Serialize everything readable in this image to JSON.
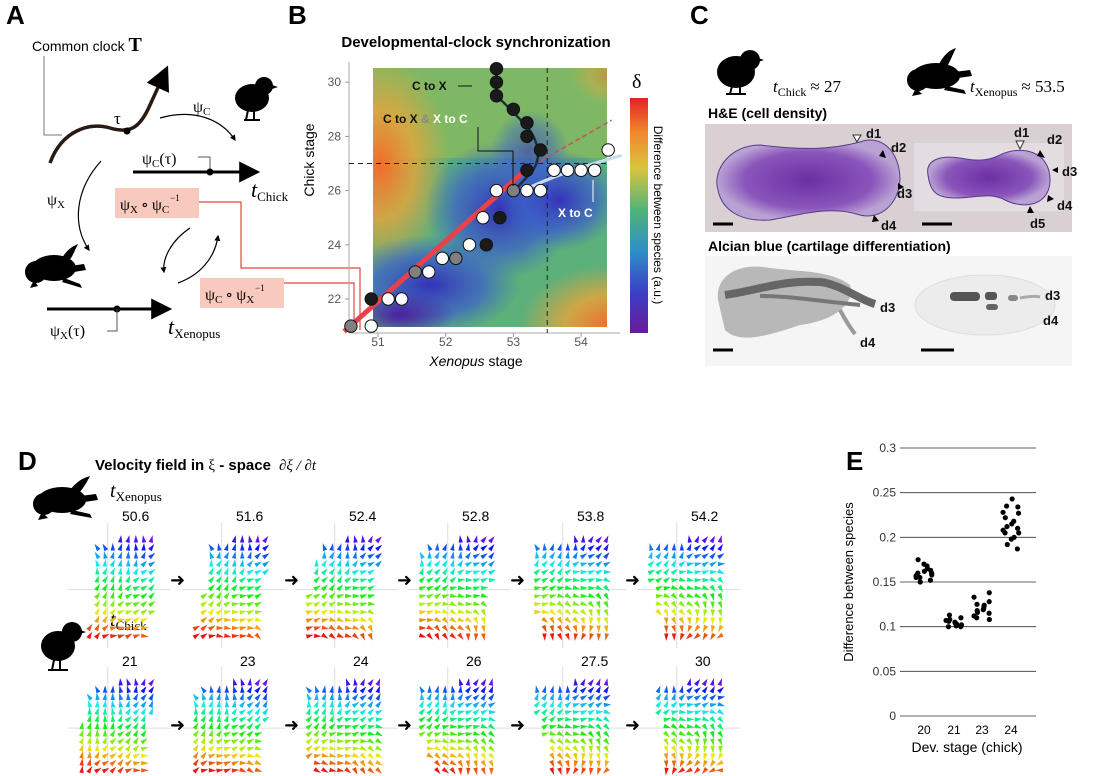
{
  "panel_labels": {
    "a": "A",
    "b": "B",
    "c": "C",
    "d": "D",
    "e": "E"
  },
  "panel_a": {
    "common_clock": "Common clock",
    "clock_symbol": "T",
    "tau": "τ",
    "psi": "ψ",
    "sub_c": "C",
    "sub_x": "X",
    "arg_tau": "(τ)",
    "t": "t",
    "chick": "Chick",
    "xenopus": "Xenopus",
    "compose": "∘",
    "inverse": "−1",
    "box_color": "#f8c9bd",
    "link_color": "#e0473a"
  },
  "panel_b": {
    "title": "Developmental-clock synchronization",
    "colorbar_symbol": "δ",
    "colorbar_label": "Difference between species (a.u.)",
    "ann_c_to_x": "C to X",
    "ann_both_1": "C to X",
    "ann_both_amp": "&",
    "ann_both_2": "X to C",
    "ann_x_to_c": "X to C"
  },
  "panel_c": {
    "chick_time_t": "t",
    "chick_time_sub": "Chick",
    "chick_time_val": "≈ 27",
    "xen_time_t": "t",
    "xen_time_sub": "Xenopus",
    "xen_time_val": "≈ 53.5",
    "he_title": "H&E (cell density)",
    "alcian_title": "Alcian blue (cartilage differentiation)",
    "he_chick_digits": [
      "d1",
      "d2",
      "d3",
      "d4"
    ],
    "he_xen_digits": [
      "d1",
      "d2",
      "d3",
      "d4",
      "d5"
    ],
    "ab_chick_digits": [
      "d3",
      "d4"
    ],
    "ab_xen_digits": [
      "d3",
      "d4"
    ]
  },
  "panel_d": {
    "title": "Velocity field in",
    "xi": "ξ",
    "space": " - space",
    "deriv": "∂ξ / ∂t",
    "t": "t",
    "xen_sub": "Xenopus",
    "chick_sub": "Chick",
    "xenopus_stages": [
      "50.6",
      "51.6",
      "52.4",
      "52.8",
      "53.8",
      "54.2"
    ],
    "chick_stages": [
      "21",
      "23",
      "24",
      "26",
      "27.5",
      "30"
    ],
    "arrow": "➜"
  },
  "chart_data": [
    {
      "panel": "B",
      "type": "heatmap",
      "title": "Developmental-clock synchronization",
      "xlabel_italic": "Xenopus",
      "xlabel": "stage",
      "ylabel": "Chick stage",
      "xlim": [
        50.5,
        54.6
      ],
      "ylim": [
        20.8,
        30.7
      ],
      "xticks": [
        "51",
        "52",
        "53",
        "54"
      ],
      "yticks": [
        "22",
        "24",
        "26",
        "28",
        "30"
      ],
      "colorscale": [
        "#6a1b9a",
        "#3b3fc4",
        "#2f8fc8",
        "#4fb37a",
        "#d9c43f",
        "#f08a2e",
        "#e32222"
      ],
      "reference_lines": {
        "xenopus": 53.5,
        "chick": 27
      },
      "series": [
        {
          "label": "C to X",
          "color": "#1a1a1a",
          "points": [
            [
              52.75,
              30.5
            ],
            [
              52.75,
              30
            ],
            [
              52.75,
              29.5
            ],
            [
              53,
              29
            ],
            [
              53.2,
              28.5
            ],
            [
              53.2,
              28
            ],
            [
              53.4,
              27.5
            ],
            [
              53.2,
              26.75
            ],
            [
              52.8,
              25
            ],
            [
              52.6,
              24
            ],
            [
              50.9,
              22
            ]
          ]
        },
        {
          "label": "C to X & X to C",
          "color": "#808080",
          "points": [
            [
              50.6,
              21
            ],
            [
              51.55,
              23
            ],
            [
              52.15,
              23.5
            ],
            [
              53,
              26
            ]
          ]
        },
        {
          "label": "X to C",
          "color": "#ffffff",
          "points": [
            [
              50.9,
              21
            ],
            [
              51.15,
              22
            ],
            [
              51.35,
              22
            ],
            [
              51.75,
              23
            ],
            [
              51.95,
              23.5
            ],
            [
              52.35,
              24
            ],
            [
              52.55,
              25
            ],
            [
              52.75,
              26
            ],
            [
              53.2,
              26
            ],
            [
              53.4,
              26
            ],
            [
              53.6,
              26.75
            ],
            [
              53.8,
              26.75
            ],
            [
              54,
              26.75
            ],
            [
              54.2,
              26.75
            ],
            [
              54.4,
              27.5
            ]
          ]
        }
      ]
    },
    {
      "panel": "E",
      "type": "scatter",
      "ylabel": "Difference between species",
      "xlabel": "Dev. stage (chick)",
      "categories": [
        "20",
        "21",
        "23",
        "24"
      ],
      "ylim": [
        0,
        0.3
      ],
      "yticks": [
        "0",
        "0.05",
        "0.1",
        "0.15",
        "0.2",
        "0.25",
        "0.3"
      ],
      "grid": true,
      "series": [
        {
          "category": "20",
          "values": [
            0.17,
            0.165,
            0.16,
            0.158,
            0.155,
            0.152,
            0.15,
            0.162,
            0.168,
            0.175,
            0.16,
            0.157,
            0.163,
            0.155
          ]
        },
        {
          "category": "21",
          "values": [
            0.1,
            0.108,
            0.105,
            0.103,
            0.1,
            0.102,
            0.107,
            0.11,
            0.113,
            0.104,
            0.101,
            0.106
          ]
        },
        {
          "category": "23",
          "values": [
            0.138,
            0.133,
            0.128,
            0.125,
            0.122,
            0.12,
            0.118,
            0.115,
            0.112,
            0.108,
            0.11,
            0.124,
            0.119,
            0.116
          ]
        },
        {
          "category": "24",
          "values": [
            0.243,
            0.235,
            0.234,
            0.228,
            0.227,
            0.222,
            0.218,
            0.215,
            0.212,
            0.21,
            0.208,
            0.205,
            0.205,
            0.2,
            0.198,
            0.192,
            0.187
          ]
        }
      ]
    }
  ]
}
